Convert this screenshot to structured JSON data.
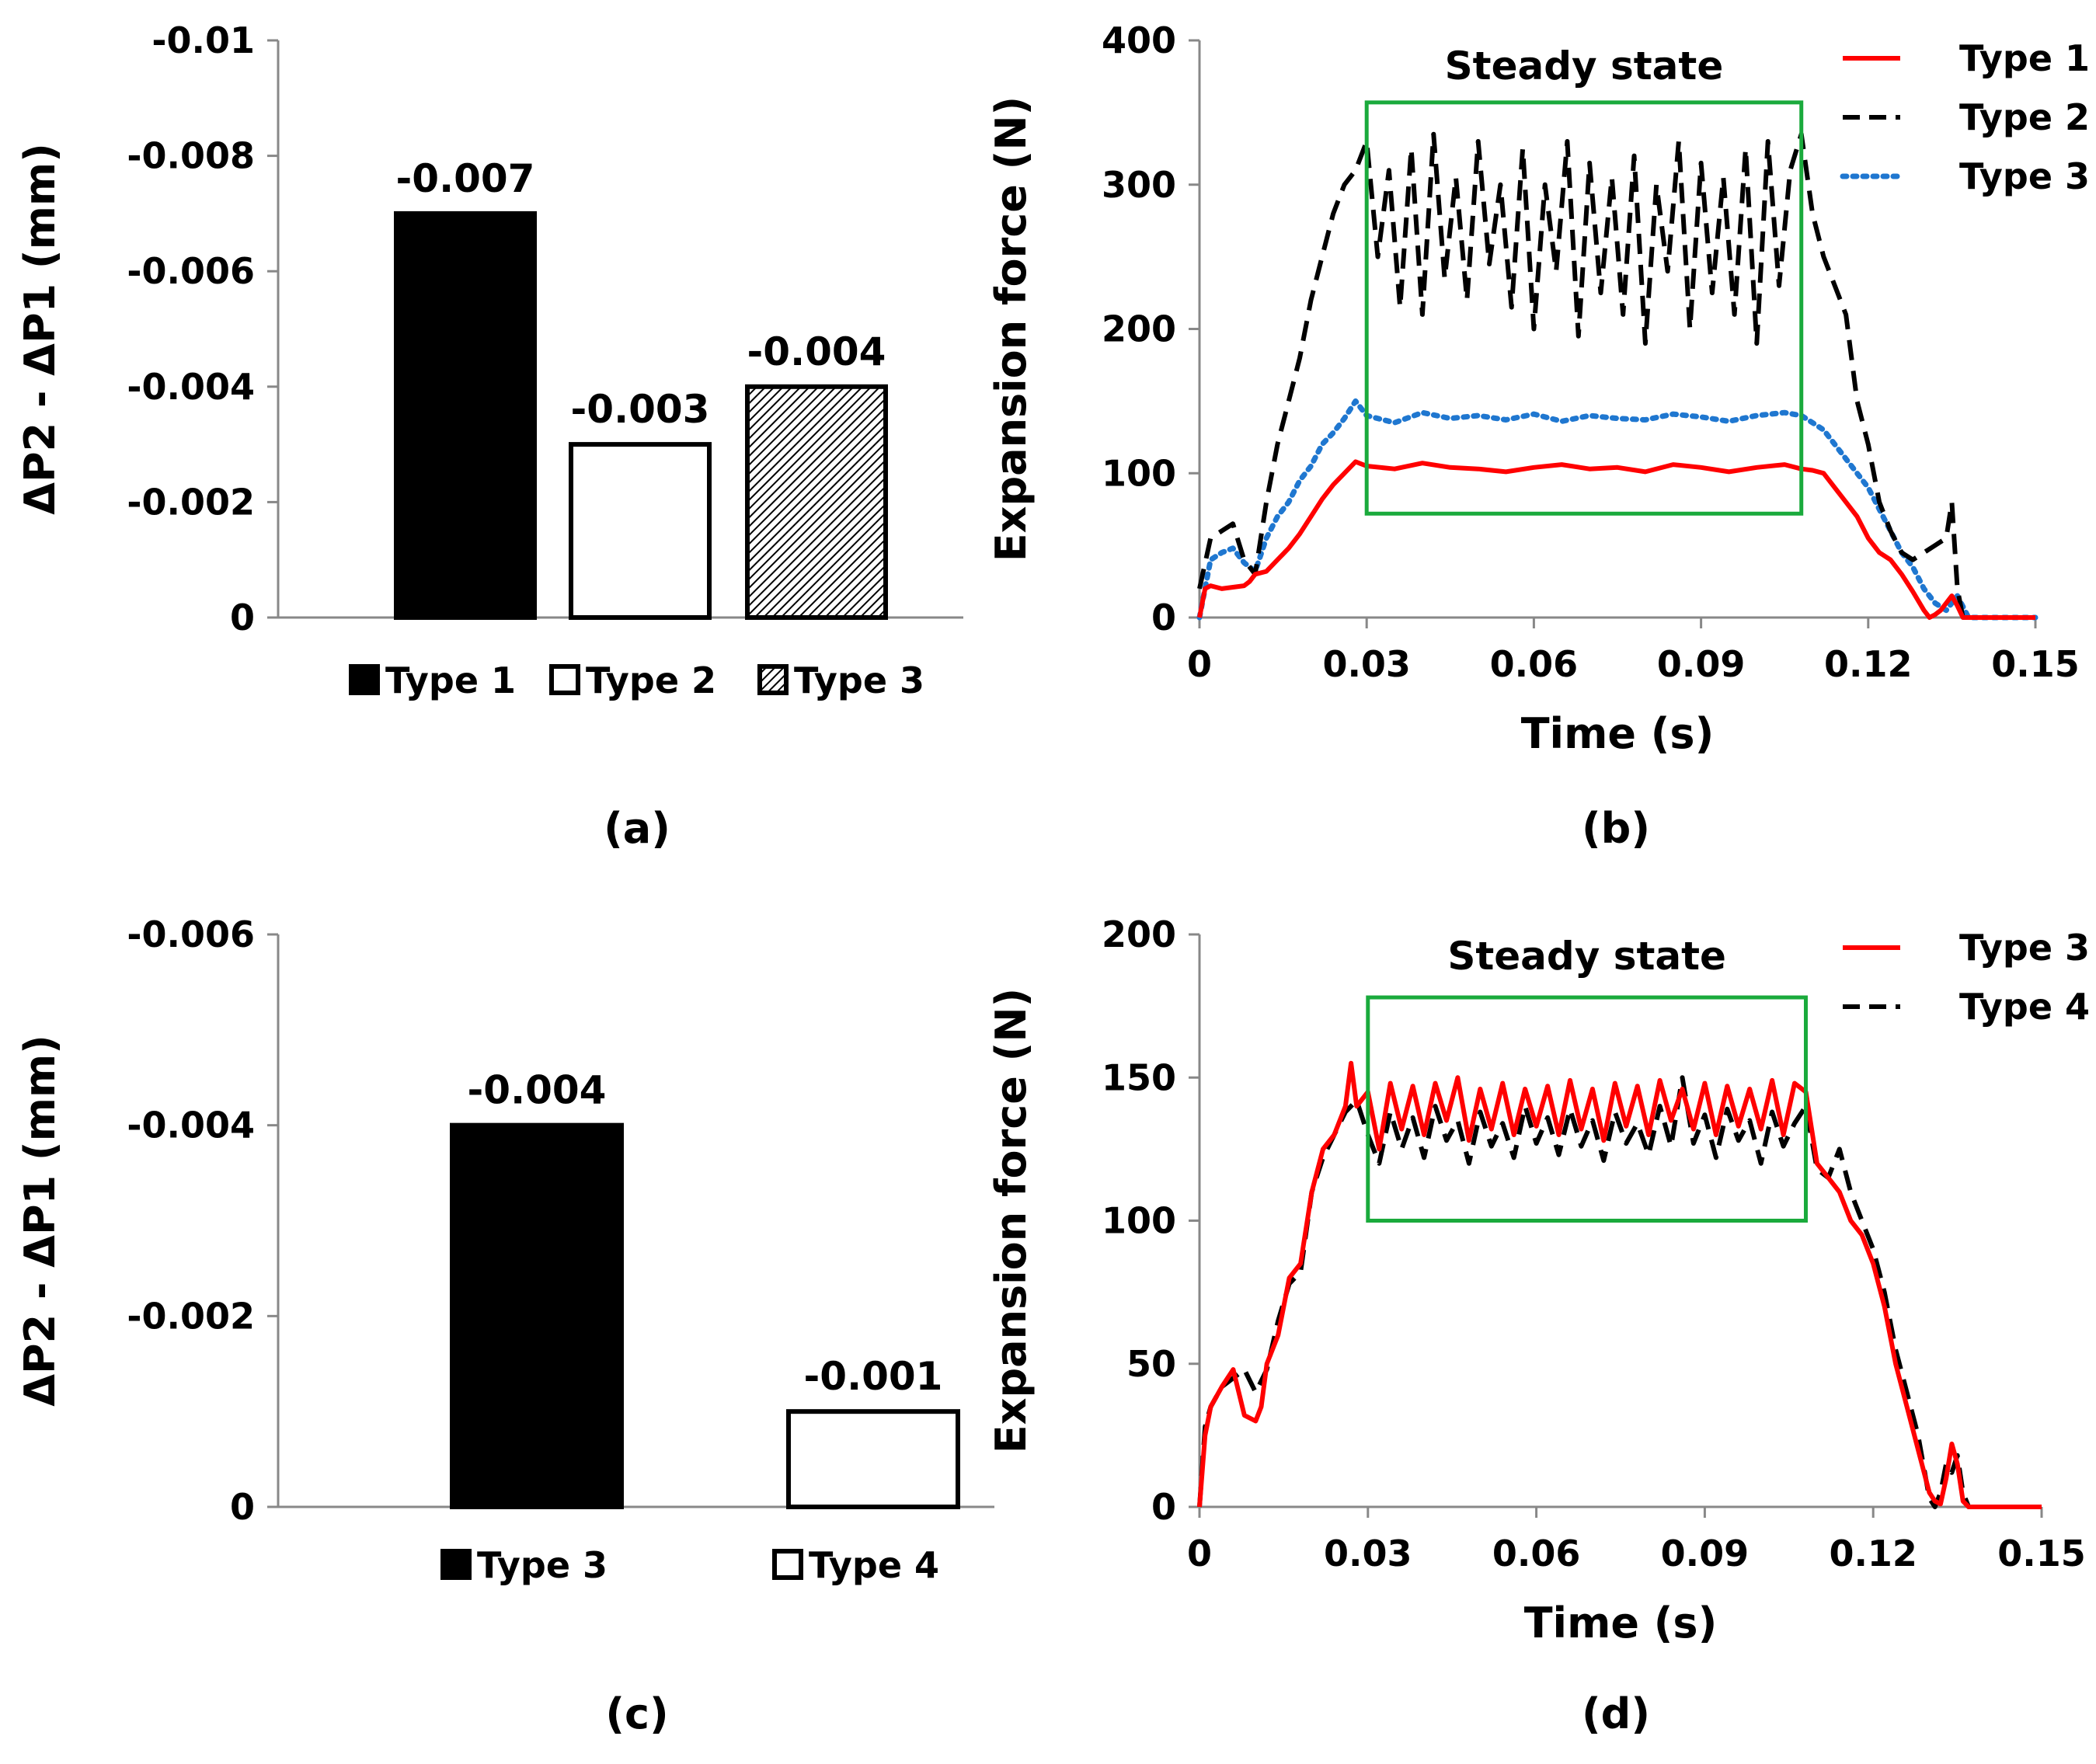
{
  "chart_data": [
    {
      "panel": "a",
      "type": "bar",
      "caption": "(a)",
      "title": "",
      "xlabel": "",
      "ylabel": "ΔP2 - ΔP1 (mm)",
      "ylim": [
        0,
        -0.01
      ],
      "yticks": [
        "0",
        "-0.002",
        "-0.004",
        "-0.006",
        "-0.008",
        "-0.01"
      ],
      "categories": [
        "Type 1",
        "Type 2",
        "Type 3"
      ],
      "values": [
        -0.007,
        -0.003,
        -0.004
      ],
      "data_labels": [
        "-0.007",
        "-0.003",
        "-0.004"
      ],
      "fills": [
        "solid",
        "white",
        "hatched"
      ],
      "legend_position": "bottom",
      "grid": false
    },
    {
      "panel": "b",
      "type": "line",
      "caption": "(b)",
      "title": "",
      "xlabel": "Time (s)",
      "ylabel": "Expansion force (N)",
      "xlim": [
        0,
        0.15
      ],
      "ylim": [
        0,
        400
      ],
      "xticks": [
        "0",
        "0.03",
        "0.06",
        "0.09",
        "0.12",
        "0.15"
      ],
      "yticks": [
        "0",
        "100",
        "200",
        "300",
        "400"
      ],
      "annotation": {
        "label": "Steady state",
        "x_range": [
          0.03,
          0.108
        ],
        "y_range": [
          72,
          357
        ]
      },
      "legend_position": "top-right",
      "grid": false,
      "series": [
        {
          "name": "Type 1",
          "color": "#ff0000",
          "style": "solid",
          "x": [
            0,
            0.001,
            0.002,
            0.004,
            0.006,
            0.008,
            0.009,
            0.01,
            0.012,
            0.014,
            0.016,
            0.018,
            0.02,
            0.022,
            0.024,
            0.026,
            0.028,
            0.03,
            0.035,
            0.04,
            0.045,
            0.05,
            0.055,
            0.06,
            0.065,
            0.07,
            0.075,
            0.08,
            0.085,
            0.09,
            0.095,
            0.1,
            0.105,
            0.108,
            0.11,
            0.112,
            0.115,
            0.118,
            0.12,
            0.122,
            0.124,
            0.126,
            0.128,
            0.13,
            0.131,
            0.132,
            0.133,
            0.134,
            0.135,
            0.136,
            0.137,
            0.138,
            0.14,
            0.145,
            0.15
          ],
          "values": [
            0,
            20,
            22,
            20,
            21,
            22,
            25,
            30,
            32,
            40,
            48,
            58,
            70,
            82,
            92,
            100,
            108,
            105,
            103,
            107,
            104,
            103,
            101,
            104,
            106,
            103,
            104,
            101,
            106,
            104,
            101,
            104,
            106,
            103,
            102,
            100,
            85,
            70,
            55,
            45,
            40,
            30,
            18,
            5,
            0,
            2,
            5,
            10,
            15,
            8,
            0,
            0,
            0,
            0,
            0
          ]
        },
        {
          "name": "Type 2",
          "color": "#000000",
          "style": "dashed",
          "x": [
            0,
            0.002,
            0.004,
            0.006,
            0.008,
            0.01,
            0.012,
            0.014,
            0.016,
            0.018,
            0.02,
            0.022,
            0.024,
            0.026,
            0.028,
            0.03,
            0.032,
            0.034,
            0.036,
            0.038,
            0.04,
            0.042,
            0.044,
            0.046,
            0.048,
            0.05,
            0.052,
            0.054,
            0.056,
            0.058,
            0.06,
            0.062,
            0.064,
            0.066,
            0.068,
            0.07,
            0.072,
            0.074,
            0.076,
            0.078,
            0.08,
            0.082,
            0.084,
            0.086,
            0.088,
            0.09,
            0.092,
            0.094,
            0.096,
            0.098,
            0.1,
            0.102,
            0.104,
            0.106,
            0.108,
            0.11,
            0.112,
            0.114,
            0.116,
            0.118,
            0.12,
            0.122,
            0.124,
            0.126,
            0.128,
            0.13,
            0.132,
            0.134,
            0.135,
            0.136,
            0.137,
            0.138,
            0.14,
            0.145,
            0.15
          ],
          "values": [
            20,
            55,
            60,
            65,
            40,
            30,
            80,
            120,
            150,
            180,
            220,
            250,
            280,
            300,
            310,
            330,
            250,
            310,
            215,
            325,
            210,
            335,
            235,
            305,
            220,
            330,
            245,
            300,
            215,
            325,
            200,
            300,
            240,
            330,
            195,
            315,
            225,
            305,
            210,
            320,
            190,
            300,
            240,
            330,
            200,
            315,
            225,
            305,
            210,
            325,
            190,
            330,
            230,
            310,
            335,
            280,
            250,
            230,
            210,
            150,
            120,
            80,
            60,
            45,
            40,
            45,
            50,
            55,
            80,
            20,
            0,
            0,
            0,
            0,
            0
          ]
        },
        {
          "name": "Type 3",
          "color": "#1f77d0",
          "style": "dotted",
          "x": [
            0,
            0.002,
            0.004,
            0.006,
            0.008,
            0.01,
            0.012,
            0.014,
            0.016,
            0.018,
            0.02,
            0.022,
            0.024,
            0.026,
            0.028,
            0.03,
            0.035,
            0.04,
            0.045,
            0.05,
            0.055,
            0.06,
            0.065,
            0.07,
            0.075,
            0.08,
            0.085,
            0.09,
            0.095,
            0.1,
            0.105,
            0.108,
            0.11,
            0.112,
            0.115,
            0.118,
            0.12,
            0.122,
            0.124,
            0.126,
            0.128,
            0.13,
            0.132,
            0.134,
            0.136,
            0.138,
            0.14,
            0.145,
            0.15
          ],
          "values": [
            0,
            40,
            45,
            48,
            38,
            32,
            55,
            70,
            80,
            95,
            105,
            120,
            128,
            138,
            150,
            140,
            135,
            142,
            138,
            140,
            137,
            141,
            136,
            140,
            138,
            137,
            141,
            139,
            136,
            140,
            142,
            140,
            135,
            130,
            115,
            100,
            90,
            75,
            60,
            45,
            35,
            20,
            10,
            5,
            15,
            0,
            0,
            0,
            0
          ]
        }
      ]
    },
    {
      "panel": "c",
      "type": "bar",
      "caption": "(c)",
      "title": "",
      "xlabel": "",
      "ylabel": "ΔP2 - ΔP1 (mm)",
      "ylim": [
        0,
        -0.006
      ],
      "yticks": [
        "0",
        "-0.002",
        "-0.004",
        "-0.006"
      ],
      "categories": [
        "Type 3",
        "Type 4"
      ],
      "values": [
        -0.004,
        -0.001
      ],
      "data_labels": [
        "-0.004",
        "-0.001"
      ],
      "fills": [
        "solid",
        "white"
      ],
      "legend_position": "bottom",
      "grid": false
    },
    {
      "panel": "d",
      "type": "line",
      "caption": "(d)",
      "title": "",
      "xlabel": "Time (s)",
      "ylabel": "Expansion force (N)",
      "xlim": [
        0,
        0.15
      ],
      "ylim": [
        0,
        200
      ],
      "xticks": [
        "0",
        "0.03",
        "0.06",
        "0.09",
        "0.12",
        "0.15"
      ],
      "yticks": [
        "0",
        "50",
        "100",
        "150",
        "200"
      ],
      "annotation": {
        "label": "Steady state",
        "x_range": [
          0.03,
          0.108
        ],
        "y_range": [
          100,
          178
        ]
      },
      "legend_position": "top-right",
      "grid": false,
      "series": [
        {
          "name": "Type 3",
          "color": "#ff0000",
          "style": "solid",
          "x": [
            0,
            0.001,
            0.002,
            0.004,
            0.006,
            0.008,
            0.01,
            0.011,
            0.012,
            0.014,
            0.015,
            0.016,
            0.018,
            0.02,
            0.022,
            0.024,
            0.026,
            0.027,
            0.028,
            0.03,
            0.032,
            0.034,
            0.036,
            0.038,
            0.04,
            0.042,
            0.044,
            0.046,
            0.048,
            0.05,
            0.052,
            0.054,
            0.056,
            0.058,
            0.06,
            0.062,
            0.064,
            0.066,
            0.068,
            0.07,
            0.072,
            0.074,
            0.076,
            0.078,
            0.08,
            0.082,
            0.084,
            0.086,
            0.088,
            0.09,
            0.092,
            0.094,
            0.096,
            0.098,
            0.1,
            0.102,
            0.104,
            0.106,
            0.108,
            0.11,
            0.112,
            0.114,
            0.116,
            0.118,
            0.12,
            0.122,
            0.124,
            0.126,
            0.128,
            0.13,
            0.131,
            0.132,
            0.133,
            0.134,
            0.135,
            0.136,
            0.137,
            0.138,
            0.14,
            0.145,
            0.15
          ],
          "values": [
            0,
            25,
            35,
            42,
            48,
            32,
            30,
            35,
            50,
            60,
            70,
            80,
            85,
            110,
            125,
            130,
            140,
            155,
            140,
            145,
            125,
            148,
            132,
            147,
            130,
            148,
            135,
            150,
            128,
            146,
            132,
            148,
            130,
            146,
            133,
            147,
            130,
            149,
            132,
            146,
            128,
            148,
            133,
            147,
            130,
            149,
            135,
            146,
            132,
            148,
            130,
            147,
            133,
            146,
            132,
            149,
            130,
            148,
            145,
            120,
            115,
            110,
            100,
            95,
            85,
            70,
            50,
            35,
            20,
            5,
            2,
            1,
            10,
            22,
            15,
            2,
            0,
            0,
            0,
            0,
            0
          ]
        },
        {
          "name": "Type 4",
          "color": "#000000",
          "style": "dashed",
          "x": [
            0,
            0.001,
            0.002,
            0.004,
            0.006,
            0.008,
            0.01,
            0.012,
            0.014,
            0.016,
            0.018,
            0.02,
            0.022,
            0.024,
            0.026,
            0.028,
            0.03,
            0.032,
            0.034,
            0.036,
            0.038,
            0.04,
            0.042,
            0.044,
            0.046,
            0.048,
            0.05,
            0.052,
            0.054,
            0.056,
            0.058,
            0.06,
            0.062,
            0.064,
            0.066,
            0.068,
            0.07,
            0.072,
            0.074,
            0.076,
            0.078,
            0.08,
            0.082,
            0.084,
            0.086,
            0.088,
            0.09,
            0.092,
            0.094,
            0.096,
            0.098,
            0.1,
            0.102,
            0.104,
            0.106,
            0.108,
            0.11,
            0.112,
            0.114,
            0.116,
            0.118,
            0.12,
            0.122,
            0.124,
            0.126,
            0.128,
            0.13,
            0.131,
            0.132,
            0.133,
            0.134,
            0.135,
            0.136,
            0.137,
            0.138,
            0.14,
            0.145,
            0.15
          ],
          "values": [
            0,
            28,
            35,
            42,
            45,
            48,
            40,
            48,
            65,
            78,
            82,
            110,
            122,
            130,
            138,
            142,
            130,
            120,
            138,
            125,
            136,
            122,
            140,
            128,
            135,
            120,
            138,
            126,
            134,
            122,
            140,
            127,
            136,
            123,
            139,
            126,
            135,
            121,
            138,
            127,
            134,
            123,
            140,
            126,
            150,
            127,
            137,
            122,
            139,
            128,
            135,
            120,
            138,
            126,
            134,
            140,
            118,
            115,
            125,
            110,
            100,
            90,
            75,
            55,
            40,
            25,
            3,
            0,
            5,
            15,
            12,
            18,
            5,
            0,
            0,
            0,
            0,
            0
          ]
        }
      ]
    }
  ]
}
